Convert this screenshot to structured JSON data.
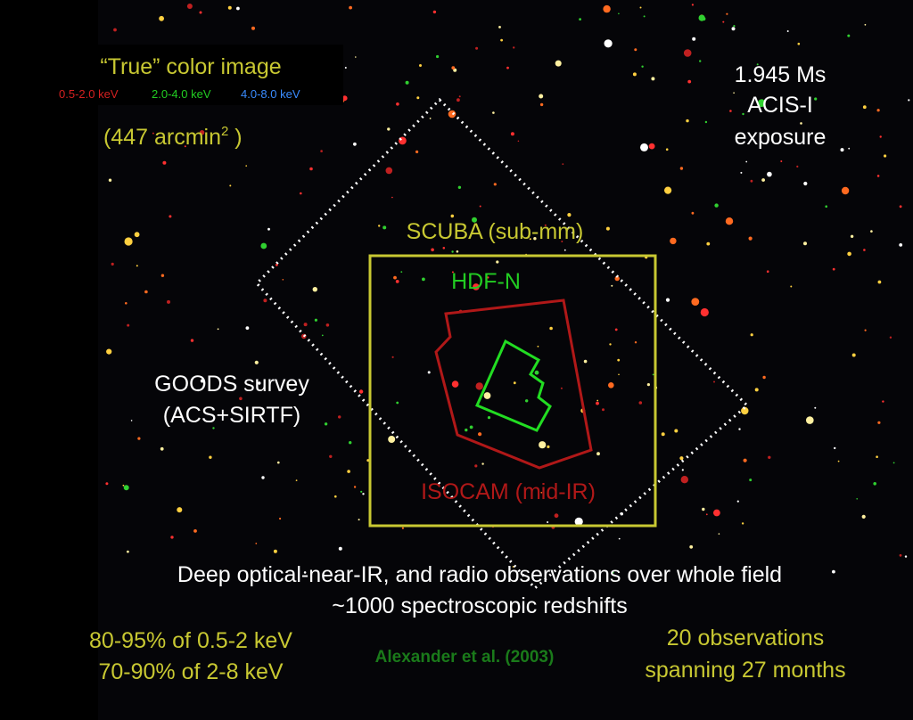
{
  "header": {
    "title": "“True” color image",
    "bands": [
      "0.5-2.0 keV",
      "2.0-4.0 keV",
      "4.0-8.0 keV"
    ],
    "area": {
      "text": "(447 arcmin",
      "sup": "2",
      "close": " )"
    }
  },
  "exposure": [
    "1.945 Ms",
    "ACIS-I",
    "exposure"
  ],
  "regions": {
    "scuba": "SCUBA (sub-mm)",
    "hdfn": "HDF-N",
    "isocam": "ISOCAM (mid-IR)",
    "goods": [
      "GOODS survey",
      "(ACS+SIRTF)"
    ]
  },
  "notes": [
    "Deep optical-near-IR, and radio observations over whole field",
    "~1000 spectroscopic redshifts"
  ],
  "completeness": [
    "80-95% of 0.5-2 keV",
    "70-90% of 2-8 keV"
  ],
  "citation": "Alexander et al. (2003)",
  "observations": [
    "20 observations",
    "spanning 27 months"
  ]
}
